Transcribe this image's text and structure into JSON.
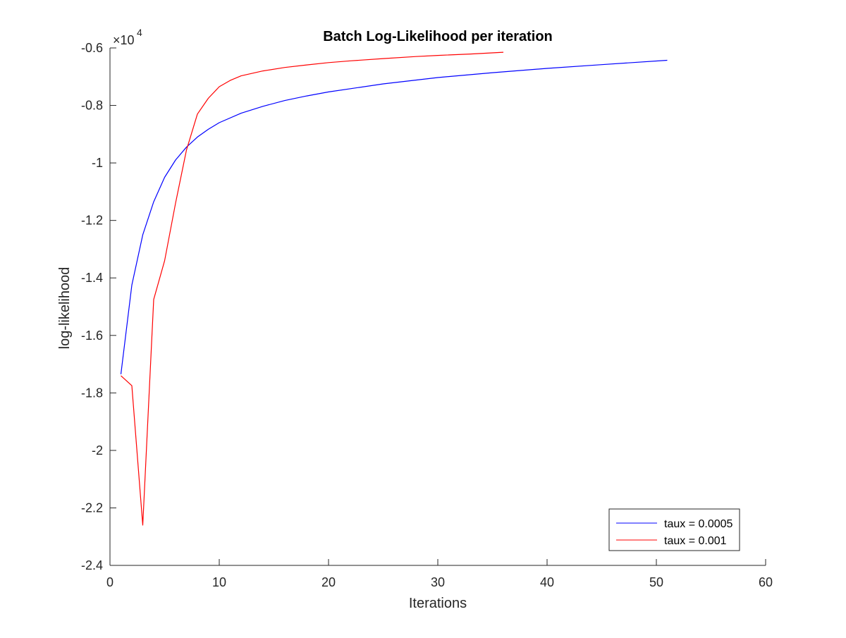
{
  "chart_data": {
    "type": "line",
    "title": "Batch Log-Likelihood per iteration",
    "xlabel": "Iterations",
    "ylabel": "log-likelihood",
    "y_exponent_label": "×10",
    "y_exponent_power": "4",
    "xlim": [
      0,
      60
    ],
    "ylim": [
      -2.4,
      -0.6
    ],
    "x_ticks": [
      0,
      10,
      20,
      30,
      40,
      50,
      60
    ],
    "x_tick_labels": [
      "0",
      "10",
      "20",
      "30",
      "40",
      "50",
      "60"
    ],
    "y_ticks": [
      -2.4,
      -2.2,
      -2.0,
      -1.8,
      -1.6,
      -1.4,
      -1.2,
      -1.0,
      -0.8,
      -0.6
    ],
    "y_tick_labels": [
      "-2.4",
      "-2.2",
      "-2",
      "-1.8",
      "-1.6",
      "-1.4",
      "-1.2",
      "-1",
      "-0.8",
      "-0.6"
    ],
    "grid": false,
    "legend_position": "bottom-right",
    "series": [
      {
        "name": "taux = 0.0005",
        "color": "#0000ff",
        "x": [
          1,
          2,
          3,
          4,
          5,
          6,
          7,
          8,
          9,
          10,
          12,
          14,
          16,
          18,
          20,
          25,
          30,
          35,
          40,
          45,
          51
        ],
        "y": [
          -1.735,
          -1.425,
          -1.25,
          -1.135,
          -1.05,
          -0.99,
          -0.945,
          -0.91,
          -0.883,
          -0.86,
          -0.827,
          -0.803,
          -0.783,
          -0.767,
          -0.753,
          -0.725,
          -0.703,
          -0.686,
          -0.671,
          -0.658,
          -0.643
        ]
      },
      {
        "name": "taux = 0.001",
        "color": "#ff0000",
        "x": [
          1,
          2,
          3,
          4,
          5,
          6,
          7,
          8,
          9,
          10,
          11,
          12,
          14,
          16,
          18,
          20,
          22,
          25,
          28,
          30,
          33,
          36
        ],
        "y": [
          -1.74,
          -1.775,
          -2.26,
          -1.475,
          -1.34,
          -1.14,
          -0.955,
          -0.83,
          -0.775,
          -0.735,
          -0.713,
          -0.697,
          -0.68,
          -0.668,
          -0.659,
          -0.651,
          -0.645,
          -0.637,
          -0.63,
          -0.626,
          -0.621,
          -0.615
        ]
      }
    ]
  }
}
